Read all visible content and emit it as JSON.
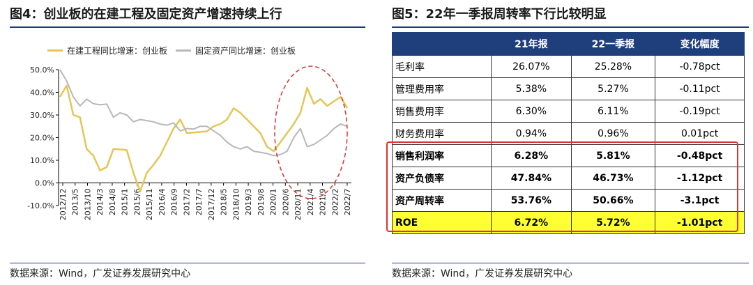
{
  "left": {
    "title": "图4：创业板的在建工程及固定资产增速持续上行",
    "source": "数据来源：Wind，广发证券发展研究中心"
  },
  "right": {
    "title": "图5：22年一季报周转率下行比较明显",
    "source": "数据来源：Wind，广发证券发展研究中心"
  },
  "colors": {
    "yellow": "#e6c552",
    "gray": "#b8b8b8",
    "header": "#1f3e7c",
    "highlight": "#ffff33",
    "annotation": "#e03030"
  },
  "chart_data": {
    "type": "line",
    "title": "",
    "ylim": [
      -10,
      50
    ],
    "yticks": [
      "-10.0%",
      "0.0%",
      "10.0%",
      "20.0%",
      "30.0%",
      "40.0%",
      "50.0%"
    ],
    "xtick_labels": [
      "2012/12",
      "2013/5",
      "2013/10",
      "2014/3",
      "2014/8",
      "2015/1",
      "2015/6",
      "2015/11",
      "2016/4",
      "2016/9",
      "2017/2",
      "2017/7",
      "2017/12",
      "2018/5",
      "2018/10",
      "2019/3",
      "2019/8",
      "2020/1",
      "2020/6",
      "2020/11",
      "2021/4",
      "2021/9",
      "2022/2",
      "2022/7"
    ],
    "legend_position": "top",
    "series": [
      {
        "name": "在建工程同比增速：创业板",
        "color": "#e6c552",
        "values": [
          38,
          43,
          30,
          29,
          15,
          12,
          5.5,
          7,
          15,
          14.8,
          14.5,
          4.5,
          -3.8,
          4.5,
          8,
          12,
          18,
          24,
          28,
          22,
          22.2,
          22.5,
          22.8,
          25,
          26,
          28,
          33,
          31,
          28,
          25,
          22,
          16,
          14,
          18,
          22,
          26,
          31,
          42,
          35,
          37,
          34,
          36,
          38,
          33
        ]
      },
      {
        "name": "固定资产同比增速：创业板",
        "color": "#b8b8b8",
        "values": [
          50,
          45,
          38,
          34,
          37,
          35,
          34.5,
          34.8,
          29,
          31,
          30,
          27,
          28,
          27.5,
          27,
          26,
          25.5,
          26.5,
          23,
          24,
          23.8,
          25,
          25,
          23,
          21,
          18,
          16,
          15,
          16,
          14,
          13.5,
          13,
          12,
          12.5,
          14,
          20,
          24,
          16,
          17,
          19,
          21,
          24,
          26,
          25
        ]
      }
    ]
  },
  "table": {
    "headers": [
      "",
      "21年报",
      "22一季报",
      "变化幅度"
    ],
    "rows": [
      {
        "label": "毛利率",
        "v1": "26.07%",
        "v2": "25.28%",
        "v3": "-0.78pct"
      },
      {
        "label": "管理费用率",
        "v1": "5.38%",
        "v2": "5.27%",
        "v3": "-0.11pct"
      },
      {
        "label": "销售费用率",
        "v1": "6.30%",
        "v2": "6.11%",
        "v3": "-0.19pct"
      },
      {
        "label": "财务费用率",
        "v1": "0.94%",
        "v2": "0.96%",
        "v3": "0.01pct"
      },
      {
        "label": "销售利润率",
        "v1": "6.28%",
        "v2": "5.81%",
        "v3": "-0.48pct"
      },
      {
        "label": "资产负债率",
        "v1": "47.84%",
        "v2": "46.73%",
        "v3": "-1.12pct"
      },
      {
        "label": "资产周转率",
        "v1": "53.76%",
        "v2": "50.66%",
        "v3": "-3.1pct"
      },
      {
        "label": "ROE",
        "v1": "6.72%",
        "v2": "5.72%",
        "v3": "-1.01pct"
      }
    ]
  }
}
